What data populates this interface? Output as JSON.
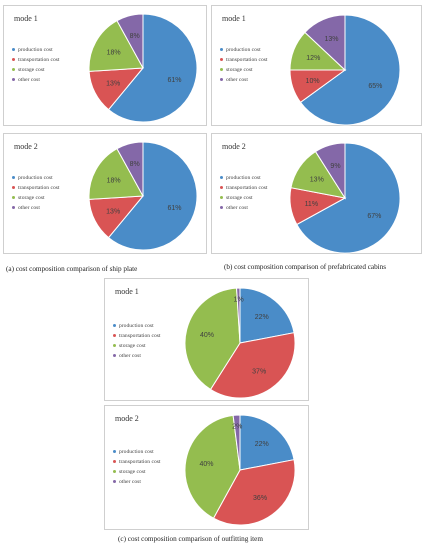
{
  "legend_labels": [
    "production cost",
    "transportation cost",
    "storage cost",
    "other cost"
  ],
  "colors": [
    "#4a8cc8",
    "#d95454",
    "#94bd4f",
    "#8468a8"
  ],
  "captions": {
    "a": "(a)    cost composition comparison of ship plate",
    "b": "(b)    cost composition comparison of prefabricated cabins",
    "c": "(c)    cost composition comparison of outfitting item"
  },
  "chart_data": [
    {
      "type": "pie",
      "title": "mode 1",
      "categories": [
        "production cost",
        "transportation cost",
        "storage cost",
        "other cost"
      ],
      "values": [
        61,
        13,
        18,
        8
      ],
      "labels": [
        "61%",
        "13%",
        "18%",
        "8%"
      ]
    },
    {
      "type": "pie",
      "title": "mode 1",
      "categories": [
        "production cost",
        "transportation cost",
        "storage cost",
        "other cost"
      ],
      "values": [
        65,
        10,
        12,
        13
      ],
      "labels": [
        "65%",
        "10%",
        "12%",
        "13%"
      ]
    },
    {
      "type": "pie",
      "title": "mode 2",
      "categories": [
        "production cost",
        "transportation cost",
        "storage cost",
        "other cost"
      ],
      "values": [
        61,
        13,
        18,
        8
      ],
      "labels": [
        "61%",
        "13%",
        "18%",
        "8%"
      ]
    },
    {
      "type": "pie",
      "title": "mode 2",
      "categories": [
        "production cost",
        "transportation cost",
        "storage cost",
        "other cost"
      ],
      "values": [
        67,
        11,
        13,
        9
      ],
      "labels": [
        "67%",
        "11%",
        "13%",
        "9%"
      ]
    },
    {
      "type": "pie",
      "title": "mode 1",
      "categories": [
        "production cost",
        "transportation cost",
        "storage cost",
        "other cost"
      ],
      "values": [
        22,
        37,
        40,
        1
      ],
      "labels": [
        "22%",
        "37%",
        "40%",
        "1%"
      ]
    },
    {
      "type": "pie",
      "title": "mode 2",
      "categories": [
        "production cost",
        "transportation cost",
        "storage cost",
        "other cost"
      ],
      "values": [
        22,
        36,
        40,
        2
      ],
      "labels": [
        "22%",
        "36%",
        "40%",
        "2%"
      ]
    }
  ]
}
